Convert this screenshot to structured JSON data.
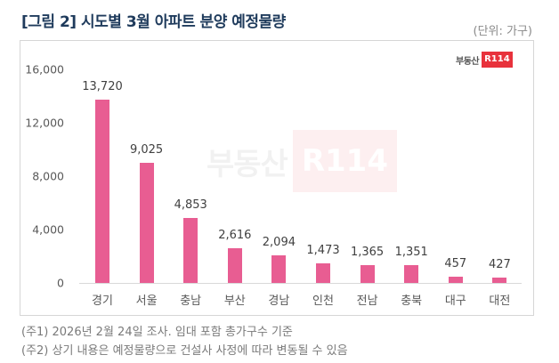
{
  "header": {
    "title": "[그림 2] 시도별 3월 아파트 분양 예정물량",
    "unit": "(단위: 가구)"
  },
  "logo": {
    "text": "부동산",
    "badge": "R114"
  },
  "watermark": {
    "text": "부동산",
    "badge": "R114"
  },
  "colors": {
    "bar": "#e85d92",
    "title": "#1f3b5c",
    "logo": "#e8323c"
  },
  "chart_data": {
    "type": "bar",
    "title": "[그림 2] 시도별 3월 아파트 분양 예정물량",
    "xlabel": "",
    "ylabel": "(단위: 가구)",
    "categories": [
      "경기",
      "서울",
      "충남",
      "부산",
      "경남",
      "인천",
      "전남",
      "충북",
      "대구",
      "대전"
    ],
    "values": [
      13720,
      9025,
      4853,
      2616,
      2094,
      1473,
      1365,
      1351,
      457,
      427
    ],
    "value_labels": [
      "13,720",
      "9,025",
      "4,853",
      "2,616",
      "2,094",
      "1,473",
      "1,365",
      "1,351",
      "457",
      "427"
    ],
    "ylim": [
      0,
      16000
    ],
    "yticks": [
      0,
      4000,
      8000,
      12000,
      16000
    ],
    "ytick_labels": [
      "0",
      "4,000",
      "8,000",
      "12,000",
      "16,000"
    ],
    "grid": false,
    "legend": "none"
  },
  "notes": [
    "(주1) 2026년 2월 24일 조사. 임대 포함 총가구수 기준",
    "(주2) 상기 내용은 예정물량으로 건설사 사정에 따라 변동될 수 있음"
  ]
}
